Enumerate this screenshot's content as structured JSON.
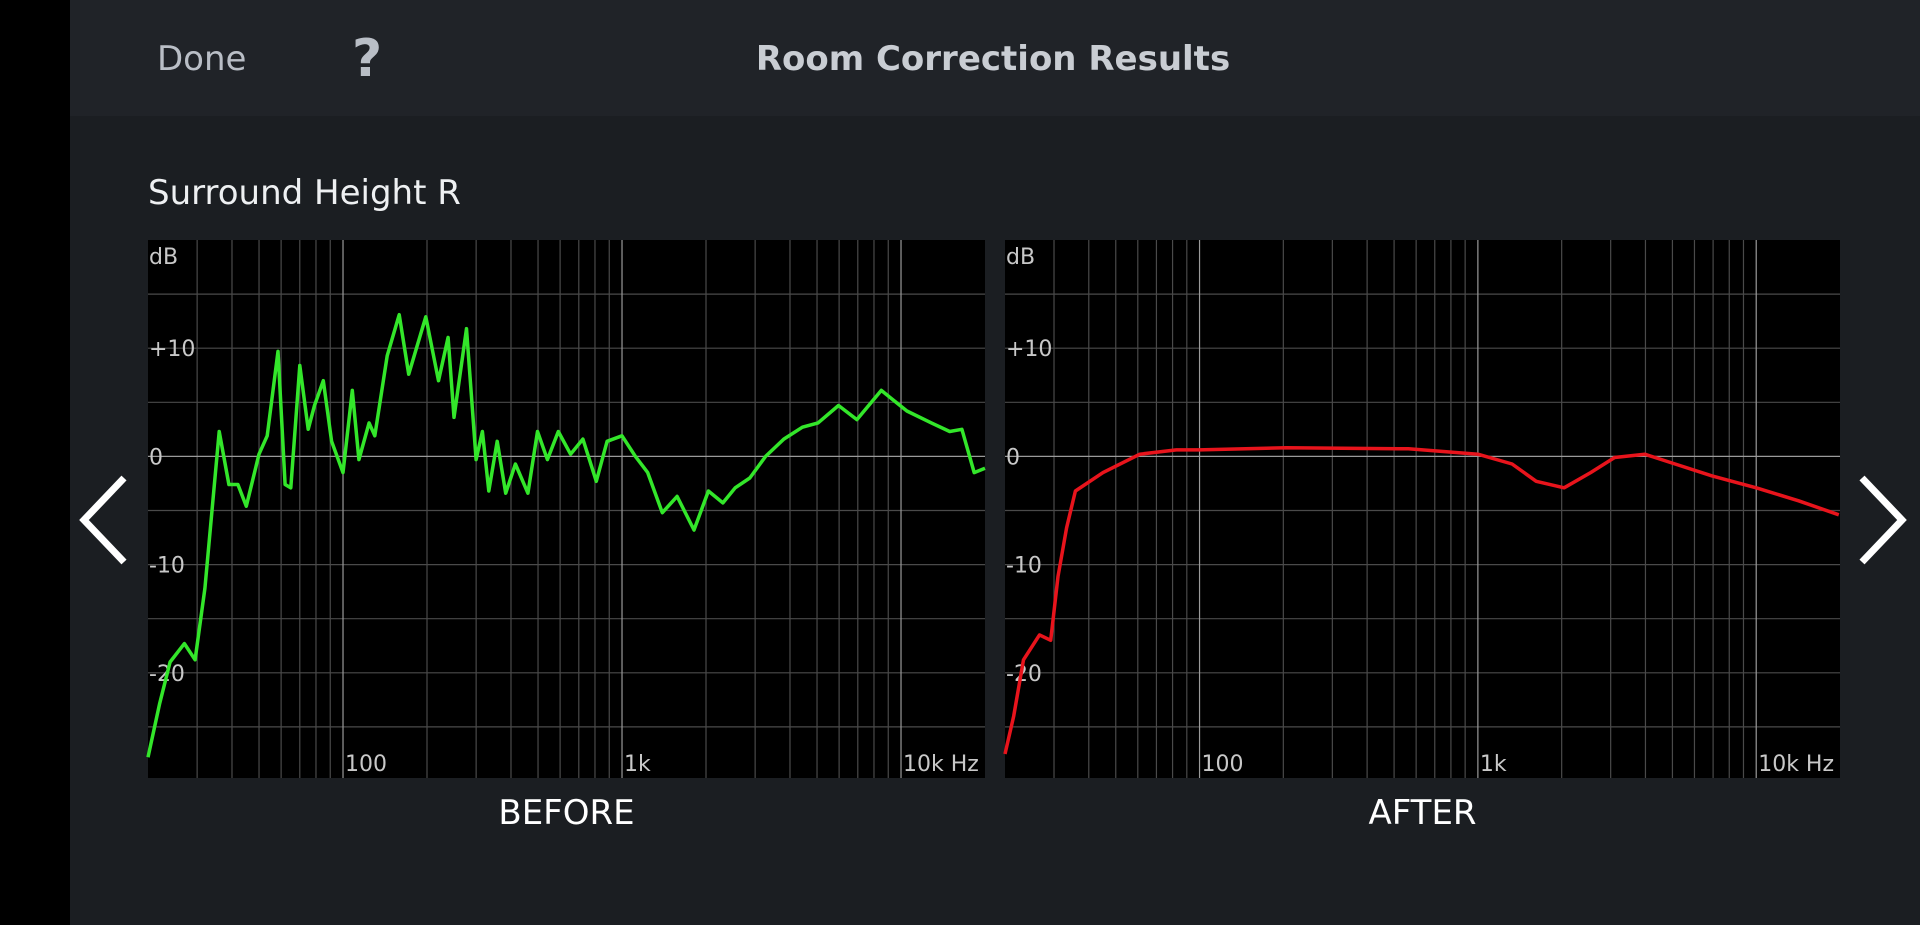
{
  "header": {
    "done": "Done",
    "help": "?",
    "title": "Room Correction Results"
  },
  "channel": "Surround Height R",
  "chart_data": [
    {
      "type": "line",
      "title": "BEFORE",
      "ylabel": "dB",
      "xscale": "log",
      "grid": true,
      "color": "#33e62a",
      "xlim": [
        20,
        20000
      ],
      "ylim": [
        -30,
        20
      ],
      "xticks": [
        100,
        {
          "value": 1000,
          "label": "1k"
        },
        {
          "value": 10000,
          "label": "10k Hz"
        }
      ],
      "minor_xticks": [
        30,
        40,
        50,
        60,
        70,
        80,
        90,
        200,
        300,
        400,
        500,
        600,
        700,
        800,
        900,
        2000,
        3000,
        4000,
        5000,
        6000,
        7000,
        8000,
        9000
      ],
      "yticks": [
        -20,
        -10,
        0,
        {
          "value": 10,
          "label": "+10"
        }
      ],
      "minor_yticks": [
        -25,
        -15,
        -5,
        5,
        15
      ],
      "x": [
        20,
        22,
        24,
        27,
        29.5,
        32,
        36,
        39,
        42,
        45,
        50,
        53.5,
        58.5,
        62,
        65,
        70,
        75,
        79,
        85,
        91,
        100,
        108,
        114,
        124,
        130,
        144,
        159,
        172,
        198,
        220,
        238,
        250,
        277,
        300,
        316,
        333,
        357,
        383,
        415,
        460,
        498,
        540,
        591,
        654,
        724,
        809,
        884,
        1000,
        1117,
        1236,
        1395,
        1575,
        1812,
        2040,
        2300,
        2545,
        2870,
        3270,
        3800,
        4430,
        5040,
        5970,
        6950,
        8500,
        10500,
        12850,
        14950,
        16530,
        18300,
        20000
      ],
      "values": [
        -27.8,
        -22.9,
        -19,
        -17.3,
        -18.8,
        -12.2,
        2.3,
        -2.6,
        -2.6,
        -4.6,
        0.2,
        1.9,
        9.7,
        -2.6,
        -2.9,
        8.4,
        2.5,
        4.7,
        7,
        1.4,
        -1.5,
        6.1,
        -0.3,
        3.1,
        1.9,
        9.3,
        13.1,
        7.6,
        12.9,
        7,
        11,
        3.6,
        11.8,
        -0.3,
        2.3,
        -3.2,
        1.4,
        -3.4,
        -0.7,
        -3.4,
        2.3,
        -0.3,
        2.3,
        0.2,
        1.6,
        -2.3,
        1.4,
        1.9,
        0,
        -1.5,
        -5.2,
        -3.7,
        -6.8,
        -3.2,
        -4.3,
        -2.9,
        -2,
        0,
        1.6,
        2.7,
        3.1,
        4.7,
        3.4,
        6.1,
        4.2,
        3.1,
        2.3,
        2.5,
        -1.5,
        -1.1
      ]
    },
    {
      "type": "line",
      "title": "AFTER",
      "ylabel": "dB",
      "xscale": "log",
      "grid": true,
      "color": "#e8141c",
      "xlim": [
        20,
        20000
      ],
      "ylim": [
        -30,
        20
      ],
      "xticks": [
        100,
        {
          "value": 1000,
          "label": "1k"
        },
        {
          "value": 10000,
          "label": "10k Hz"
        }
      ],
      "minor_xticks": [
        30,
        40,
        50,
        60,
        70,
        80,
        90,
        200,
        300,
        400,
        500,
        600,
        700,
        800,
        900,
        2000,
        3000,
        4000,
        5000,
        6000,
        7000,
        8000,
        9000
      ],
      "yticks": [
        -20,
        -10,
        0,
        {
          "value": 10,
          "label": "+10"
        }
      ],
      "minor_yticks": [
        -25,
        -15,
        -5,
        5,
        15
      ],
      "x": [
        20,
        21.5,
        23.3,
        26.6,
        29.2,
        31,
        33.3,
        35.8,
        45,
        61,
        82.5,
        100,
        205,
        563,
        1000,
        1327,
        1620,
        2040,
        2540,
        3100,
        3980,
        5110,
        6940,
        10000,
        14200,
        19800
      ],
      "values": [
        -27.5,
        -24,
        -18.8,
        -16.5,
        -17,
        -11.1,
        -6.6,
        -3.2,
        -1.5,
        0.2,
        0.6,
        0.6,
        0.8,
        0.7,
        0.2,
        -0.7,
        -2.3,
        -2.9,
        -1.5,
        -0.1,
        0.2,
        -0.7,
        -1.8,
        -2.9,
        -4.1,
        -5.4
      ]
    }
  ]
}
